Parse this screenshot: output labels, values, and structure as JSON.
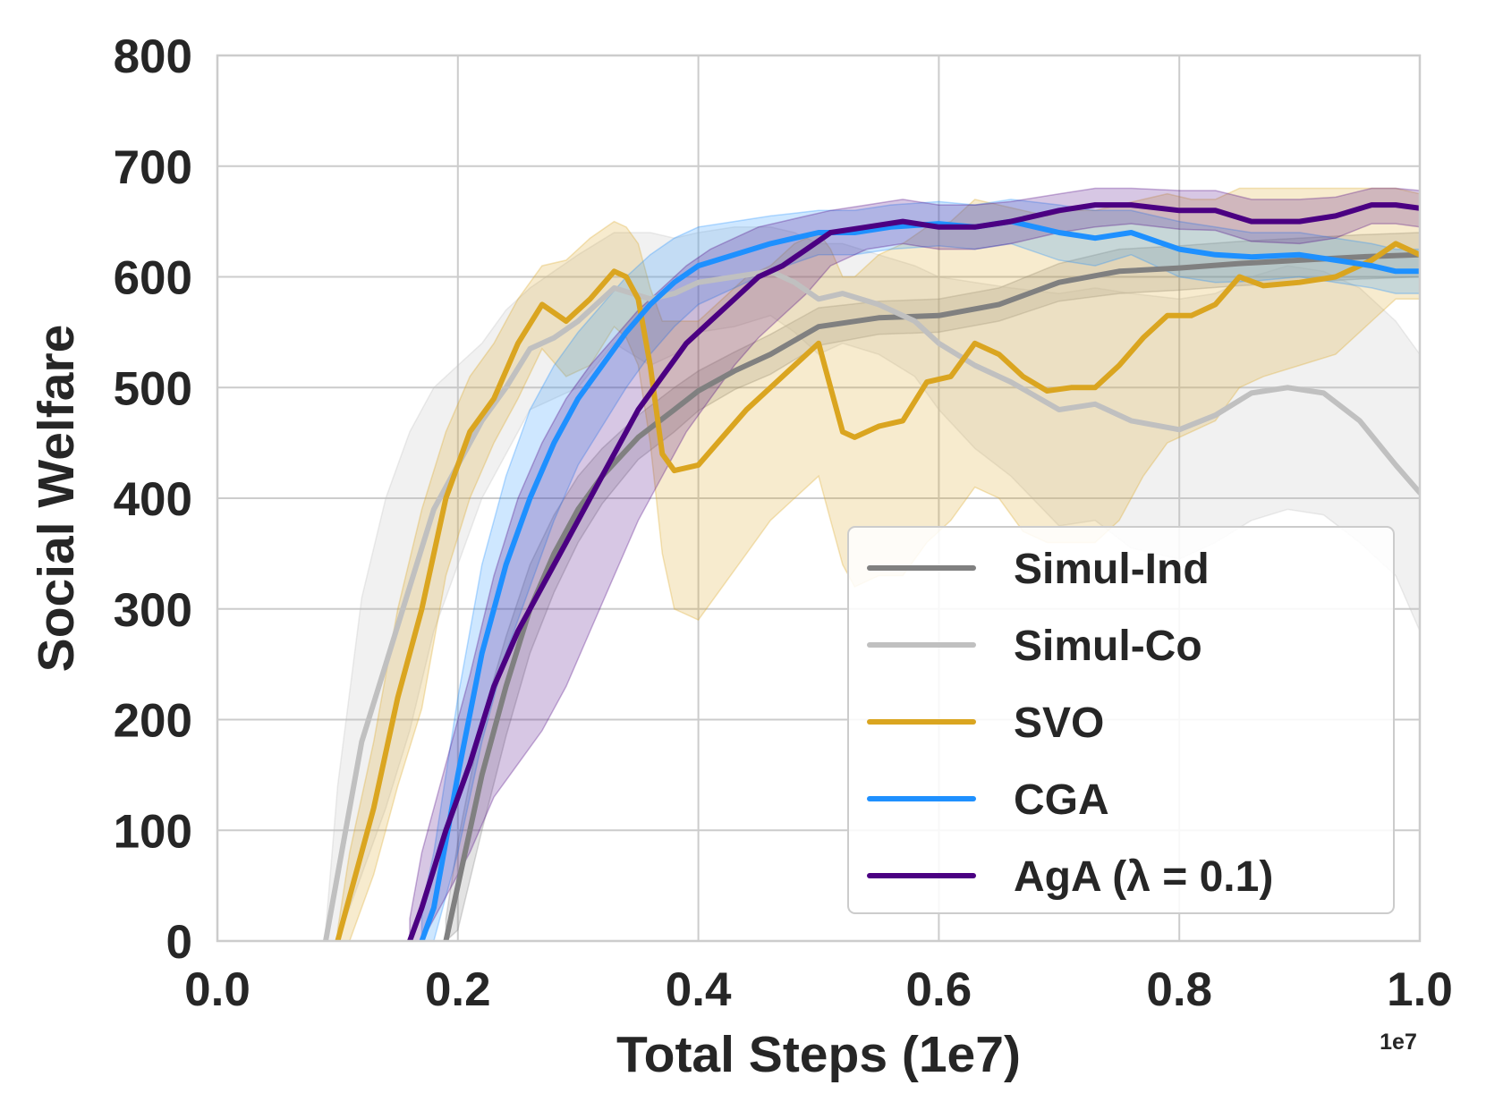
{
  "chart_data": {
    "type": "line",
    "title": "",
    "xlabel": "Total Steps (1e7)",
    "ylabel": "Social Welfare",
    "x_offset_label": "1e7",
    "xlim": [
      0.0,
      1.0
    ],
    "ylim": [
      0,
      800
    ],
    "x_ticks": [
      0.0,
      0.2,
      0.4,
      0.6,
      0.8,
      1.0
    ],
    "x_tick_labels": [
      "0.0",
      "0.2",
      "0.4",
      "0.6",
      "0.8",
      "1.0"
    ],
    "y_ticks": [
      0,
      100,
      200,
      300,
      400,
      500,
      600,
      700,
      800
    ],
    "y_tick_labels": [
      "0",
      "100",
      "200",
      "300",
      "400",
      "500",
      "600",
      "700",
      "800"
    ],
    "grid": true,
    "legend_position": "lower-right",
    "series": [
      {
        "name": "Simul-Ind",
        "color": "#808080",
        "x": [
          0.19,
          0.2,
          0.22,
          0.24,
          0.26,
          0.28,
          0.3,
          0.32,
          0.35,
          0.38,
          0.4,
          0.43,
          0.46,
          0.5,
          0.55,
          0.6,
          0.65,
          0.7,
          0.75,
          0.8,
          0.85,
          0.9,
          0.95,
          1.0
        ],
        "values": [
          0,
          50,
          150,
          230,
          300,
          350,
          390,
          420,
          455,
          480,
          497,
          515,
          530,
          555,
          563,
          565,
          575,
          595,
          605,
          608,
          612,
          615,
          618,
          620
        ],
        "band_upper": [
          20,
          90,
          200,
          275,
          340,
          385,
          420,
          445,
          475,
          500,
          515,
          532,
          548,
          572,
          578,
          580,
          590,
          612,
          625,
          628,
          632,
          635,
          638,
          640
        ],
        "band_lower": [
          0,
          10,
          100,
          185,
          260,
          315,
          360,
          395,
          435,
          460,
          479,
          498,
          512,
          538,
          548,
          550,
          560,
          578,
          585,
          588,
          592,
          595,
          598,
          600
        ]
      },
      {
        "name": "Simul-Co",
        "color": "#c0c0c0",
        "x": [
          0.09,
          0.1,
          0.12,
          0.14,
          0.16,
          0.18,
          0.2,
          0.22,
          0.24,
          0.26,
          0.28,
          0.3,
          0.33,
          0.36,
          0.38,
          0.4,
          0.43,
          0.46,
          0.48,
          0.5,
          0.52,
          0.55,
          0.58,
          0.6,
          0.63,
          0.66,
          0.7,
          0.73,
          0.76,
          0.8,
          0.83,
          0.86,
          0.89,
          0.92,
          0.95,
          0.98,
          1.0
        ],
        "values": [
          0,
          60,
          180,
          250,
          320,
          390,
          430,
          470,
          500,
          535,
          545,
          560,
          590,
          580,
          585,
          595,
          600,
          605,
          595,
          580,
          585,
          575,
          560,
          540,
          520,
          505,
          480,
          485,
          470,
          462,
          475,
          495,
          500,
          495,
          470,
          430,
          405
        ],
        "band_upper": [
          10,
          140,
          310,
          400,
          460,
          500,
          520,
          540,
          570,
          590,
          605,
          620,
          640,
          640,
          635,
          640,
          645,
          645,
          640,
          630,
          630,
          620,
          610,
          600,
          595,
          590,
          585,
          590,
          585,
          580,
          585,
          600,
          610,
          605,
          590,
          560,
          530
        ],
        "band_lower": [
          0,
          0,
          60,
          120,
          190,
          280,
          340,
          400,
          440,
          480,
          490,
          500,
          540,
          520,
          530,
          550,
          555,
          565,
          550,
          530,
          540,
          530,
          510,
          480,
          445,
          420,
          375,
          380,
          355,
          345,
          360,
          380,
          390,
          385,
          360,
          330,
          280
        ]
      },
      {
        "name": "SVO",
        "color": "#daa520",
        "x": [
          0.1,
          0.11,
          0.13,
          0.15,
          0.17,
          0.19,
          0.21,
          0.23,
          0.25,
          0.27,
          0.29,
          0.31,
          0.33,
          0.34,
          0.35,
          0.36,
          0.37,
          0.38,
          0.4,
          0.42,
          0.44,
          0.46,
          0.48,
          0.5,
          0.51,
          0.52,
          0.53,
          0.55,
          0.57,
          0.59,
          0.61,
          0.63,
          0.65,
          0.67,
          0.69,
          0.71,
          0.73,
          0.75,
          0.77,
          0.79,
          0.81,
          0.83,
          0.85,
          0.87,
          0.9,
          0.93,
          0.96,
          0.98,
          1.0
        ],
        "values": [
          0,
          40,
          120,
          220,
          300,
          400,
          460,
          490,
          540,
          575,
          560,
          580,
          605,
          600,
          580,
          520,
          440,
          425,
          430,
          455,
          480,
          500,
          520,
          540,
          500,
          460,
          455,
          465,
          470,
          505,
          510,
          540,
          530,
          510,
          497,
          500,
          500,
          520,
          545,
          565,
          565,
          575,
          600,
          592,
          595,
          600,
          615,
          630,
          620
        ],
        "band_upper": [
          10,
          80,
          180,
          300,
          390,
          460,
          510,
          540,
          580,
          610,
          615,
          635,
          650,
          645,
          630,
          590,
          560,
          560,
          560,
          580,
          600,
          610,
          630,
          640,
          625,
          600,
          600,
          620,
          630,
          645,
          650,
          670,
          665,
          660,
          655,
          660,
          660,
          665,
          670,
          675,
          670,
          670,
          680,
          680,
          680,
          680,
          680,
          680,
          675
        ],
        "band_lower": [
          0,
          0,
          60,
          140,
          210,
          330,
          400,
          450,
          490,
          535,
          510,
          520,
          555,
          545,
          520,
          450,
          350,
          300,
          290,
          320,
          350,
          380,
          400,
          420,
          380,
          340,
          320,
          330,
          330,
          360,
          380,
          410,
          400,
          370,
          360,
          360,
          360,
          380,
          420,
          450,
          460,
          470,
          500,
          510,
          520,
          530,
          560,
          580,
          580
        ]
      },
      {
        "name": "CGA",
        "color": "#1e90ff",
        "x": [
          0.17,
          0.18,
          0.2,
          0.22,
          0.24,
          0.26,
          0.28,
          0.3,
          0.32,
          0.34,
          0.36,
          0.38,
          0.4,
          0.43,
          0.46,
          0.5,
          0.53,
          0.56,
          0.6,
          0.63,
          0.66,
          0.7,
          0.73,
          0.76,
          0.8,
          0.83,
          0.86,
          0.9,
          0.93,
          0.96,
          0.98,
          1.0
        ],
        "values": [
          0,
          30,
          150,
          260,
          340,
          400,
          450,
          490,
          520,
          550,
          575,
          595,
          610,
          620,
          630,
          640,
          640,
          645,
          648,
          645,
          650,
          640,
          635,
          640,
          625,
          620,
          618,
          620,
          615,
          610,
          605,
          605
        ],
        "band_upper": [
          30,
          80,
          220,
          340,
          420,
          480,
          520,
          550,
          575,
          600,
          620,
          635,
          645,
          650,
          655,
          660,
          660,
          665,
          668,
          665,
          670,
          665,
          660,
          660,
          650,
          645,
          640,
          640,
          635,
          630,
          625,
          625
        ],
        "band_lower": [
          0,
          0,
          80,
          180,
          260,
          320,
          380,
          430,
          465,
          500,
          530,
          555,
          575,
          590,
          605,
          620,
          620,
          625,
          628,
          625,
          630,
          615,
          610,
          620,
          600,
          595,
          596,
          600,
          595,
          590,
          585,
          585
        ]
      },
      {
        "name": "AgA (λ = 0.1)",
        "color": "#4b0082",
        "x": [
          0.16,
          0.17,
          0.19,
          0.21,
          0.23,
          0.25,
          0.27,
          0.29,
          0.31,
          0.33,
          0.35,
          0.37,
          0.39,
          0.41,
          0.43,
          0.45,
          0.47,
          0.49,
          0.51,
          0.54,
          0.57,
          0.6,
          0.63,
          0.66,
          0.7,
          0.73,
          0.76,
          0.8,
          0.83,
          0.86,
          0.9,
          0.93,
          0.96,
          0.98,
          1.0
        ],
        "values": [
          0,
          30,
          100,
          160,
          230,
          280,
          320,
          360,
          400,
          440,
          480,
          510,
          540,
          560,
          580,
          600,
          610,
          625,
          640,
          645,
          650,
          645,
          645,
          650,
          660,
          665,
          665,
          660,
          660,
          650,
          650,
          655,
          665,
          665,
          662
        ],
        "band_upper": [
          20,
          80,
          160,
          240,
          330,
          400,
          450,
          490,
          520,
          545,
          570,
          590,
          610,
          625,
          635,
          645,
          650,
          655,
          660,
          665,
          670,
          665,
          665,
          668,
          675,
          680,
          680,
          678,
          678,
          670,
          670,
          672,
          680,
          680,
          678
        ],
        "band_lower": [
          0,
          0,
          40,
          80,
          130,
          160,
          190,
          230,
          280,
          330,
          380,
          420,
          460,
          490,
          520,
          545,
          565,
          585,
          610,
          625,
          630,
          625,
          625,
          630,
          640,
          645,
          648,
          643,
          642,
          632,
          630,
          635,
          648,
          648,
          645
        ]
      }
    ]
  }
}
